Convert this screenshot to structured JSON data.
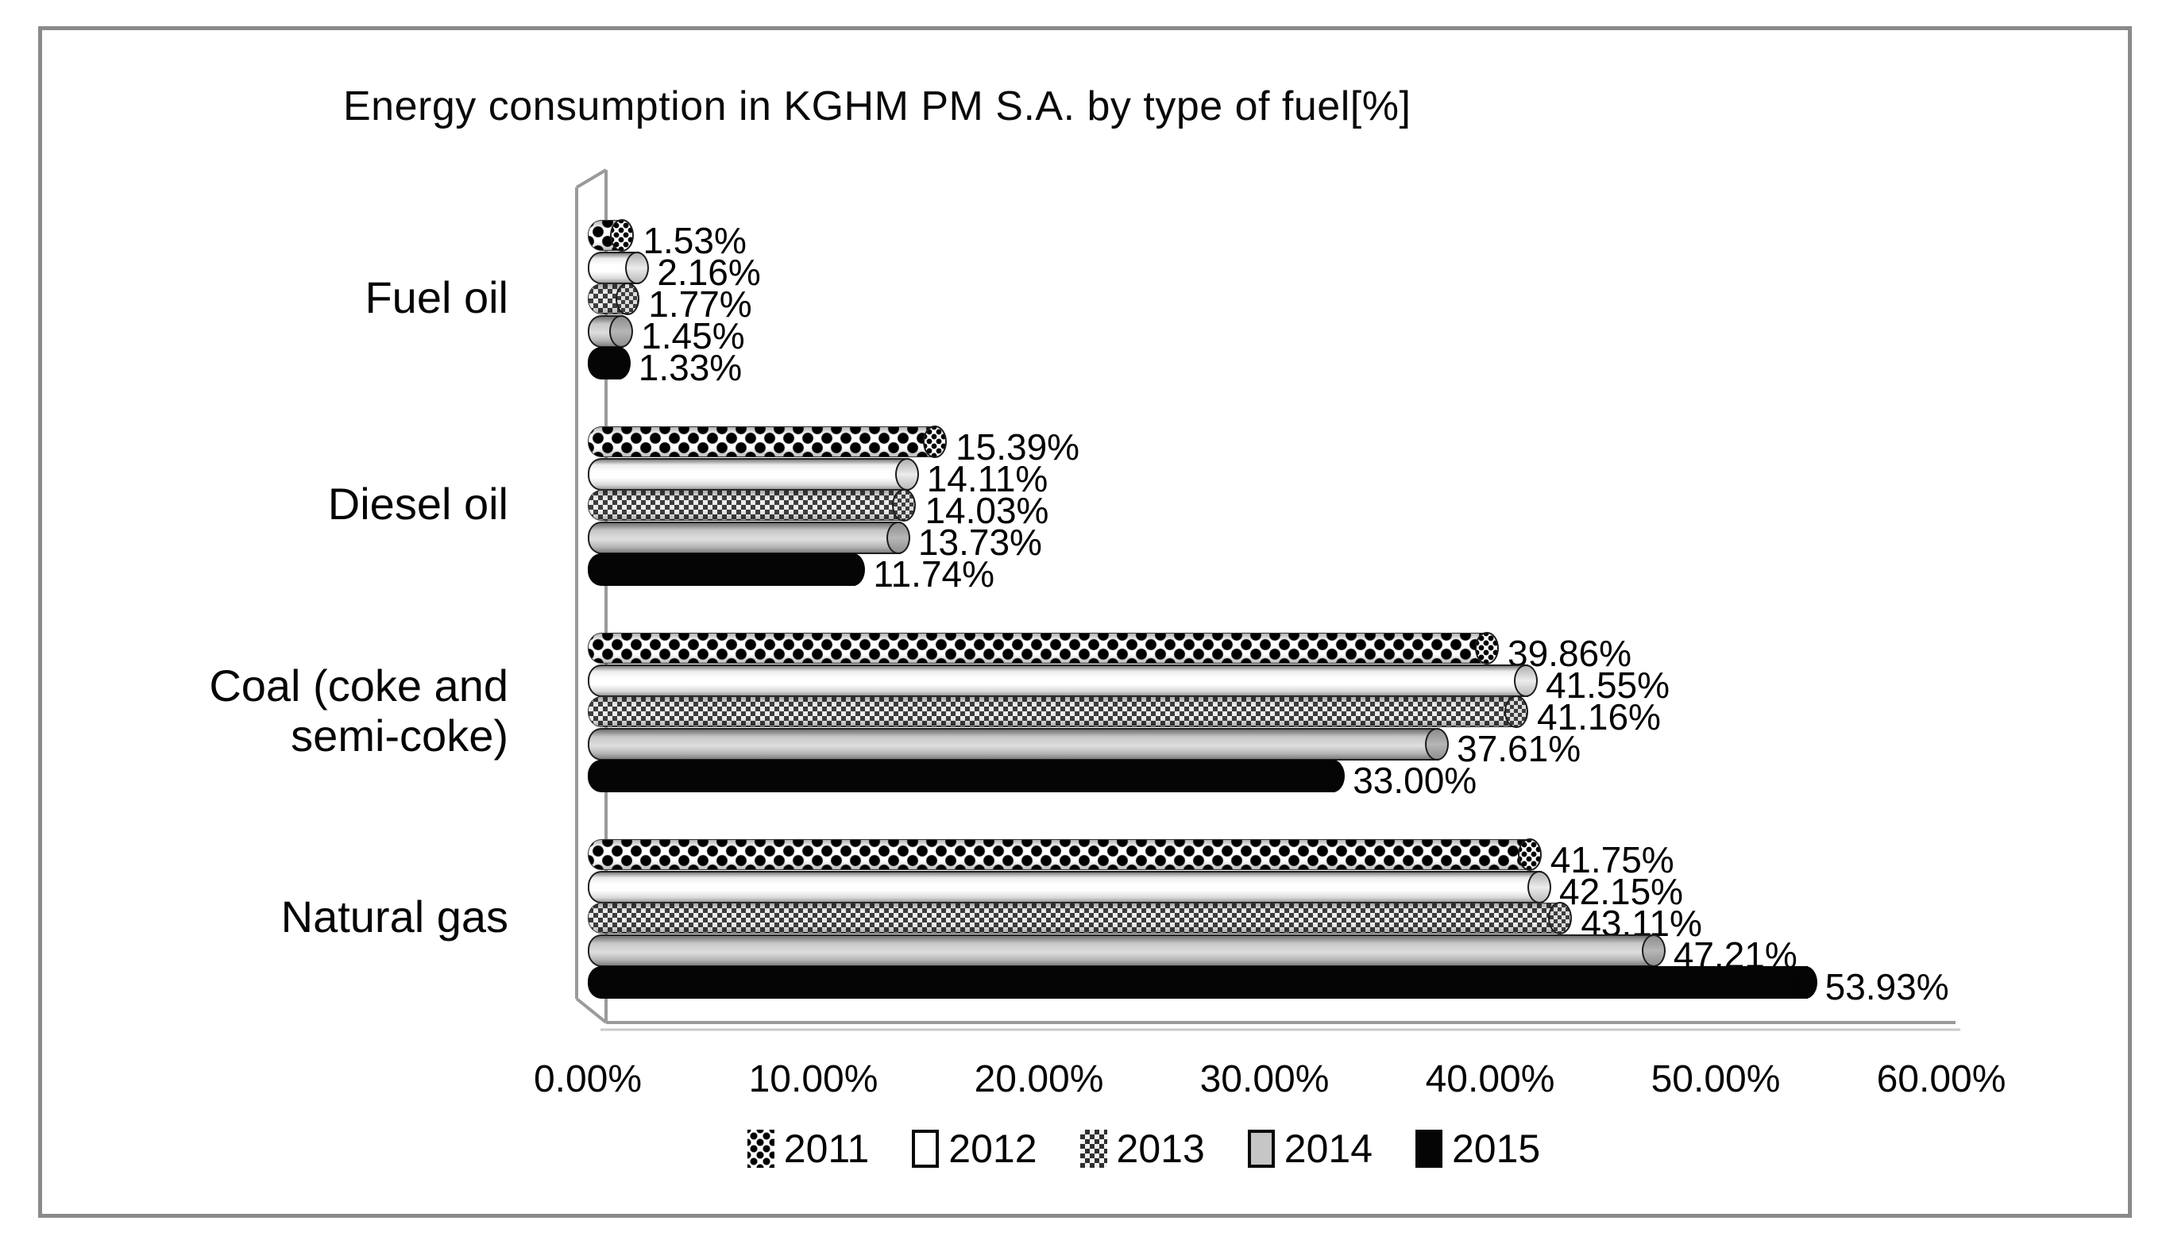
{
  "chart_data": {
    "type": "bar",
    "orientation": "horizontal",
    "style": "3d-cylinder",
    "title": "Energy consumption in KGHM PM S.A. by type of fuel[%]",
    "categories": [
      "Fuel oil",
      "Diesel oil",
      "Coal (coke and semi-coke)",
      "Natural gas"
    ],
    "series": [
      {
        "name": "2011",
        "pattern": "diamond-dots",
        "values": [
          1.53,
          15.39,
          39.86,
          41.75
        ],
        "labels": [
          "1.53%",
          "15.39%",
          "39.86%",
          "41.75%"
        ]
      },
      {
        "name": "2012",
        "pattern": "plain-white",
        "values": [
          2.16,
          14.11,
          41.55,
          42.15
        ],
        "labels": [
          "2.16%",
          "14.11%",
          "41.55%",
          "42.15%"
        ]
      },
      {
        "name": "2013",
        "pattern": "fine-checker",
        "values": [
          1.77,
          14.03,
          41.16,
          43.11
        ],
        "labels": [
          "1.77%",
          "14.03%",
          "41.16%",
          "43.11%"
        ]
      },
      {
        "name": "2014",
        "pattern": "solid-gray",
        "values": [
          1.45,
          13.73,
          37.61,
          47.21
        ],
        "labels": [
          "1.45%",
          "13.73%",
          "37.61%",
          "47.21%"
        ]
      },
      {
        "name": "2015",
        "pattern": "solid-black",
        "values": [
          1.33,
          11.74,
          33.0,
          53.93
        ],
        "labels": [
          "1.33%",
          "11.74%",
          "33.00%",
          "53.93%"
        ]
      }
    ],
    "x_ticks": [
      "0.00%",
      "10.00%",
      "20.00%",
      "30.00%",
      "40.00%",
      "50.00%",
      "60.00%"
    ],
    "xlim": [
      0,
      60
    ],
    "grid": false,
    "legend": [
      "2011",
      "2012",
      "2013",
      "2014",
      "2015"
    ],
    "legend_position": "bottom",
    "colors": {
      "bar_black": "#050505",
      "bar_gray": "#c6c6c6",
      "bar_white": "#ffffff",
      "axis_line": "#9a9a9a",
      "frame_border": "#8a8a8a",
      "text": "#050505"
    }
  }
}
